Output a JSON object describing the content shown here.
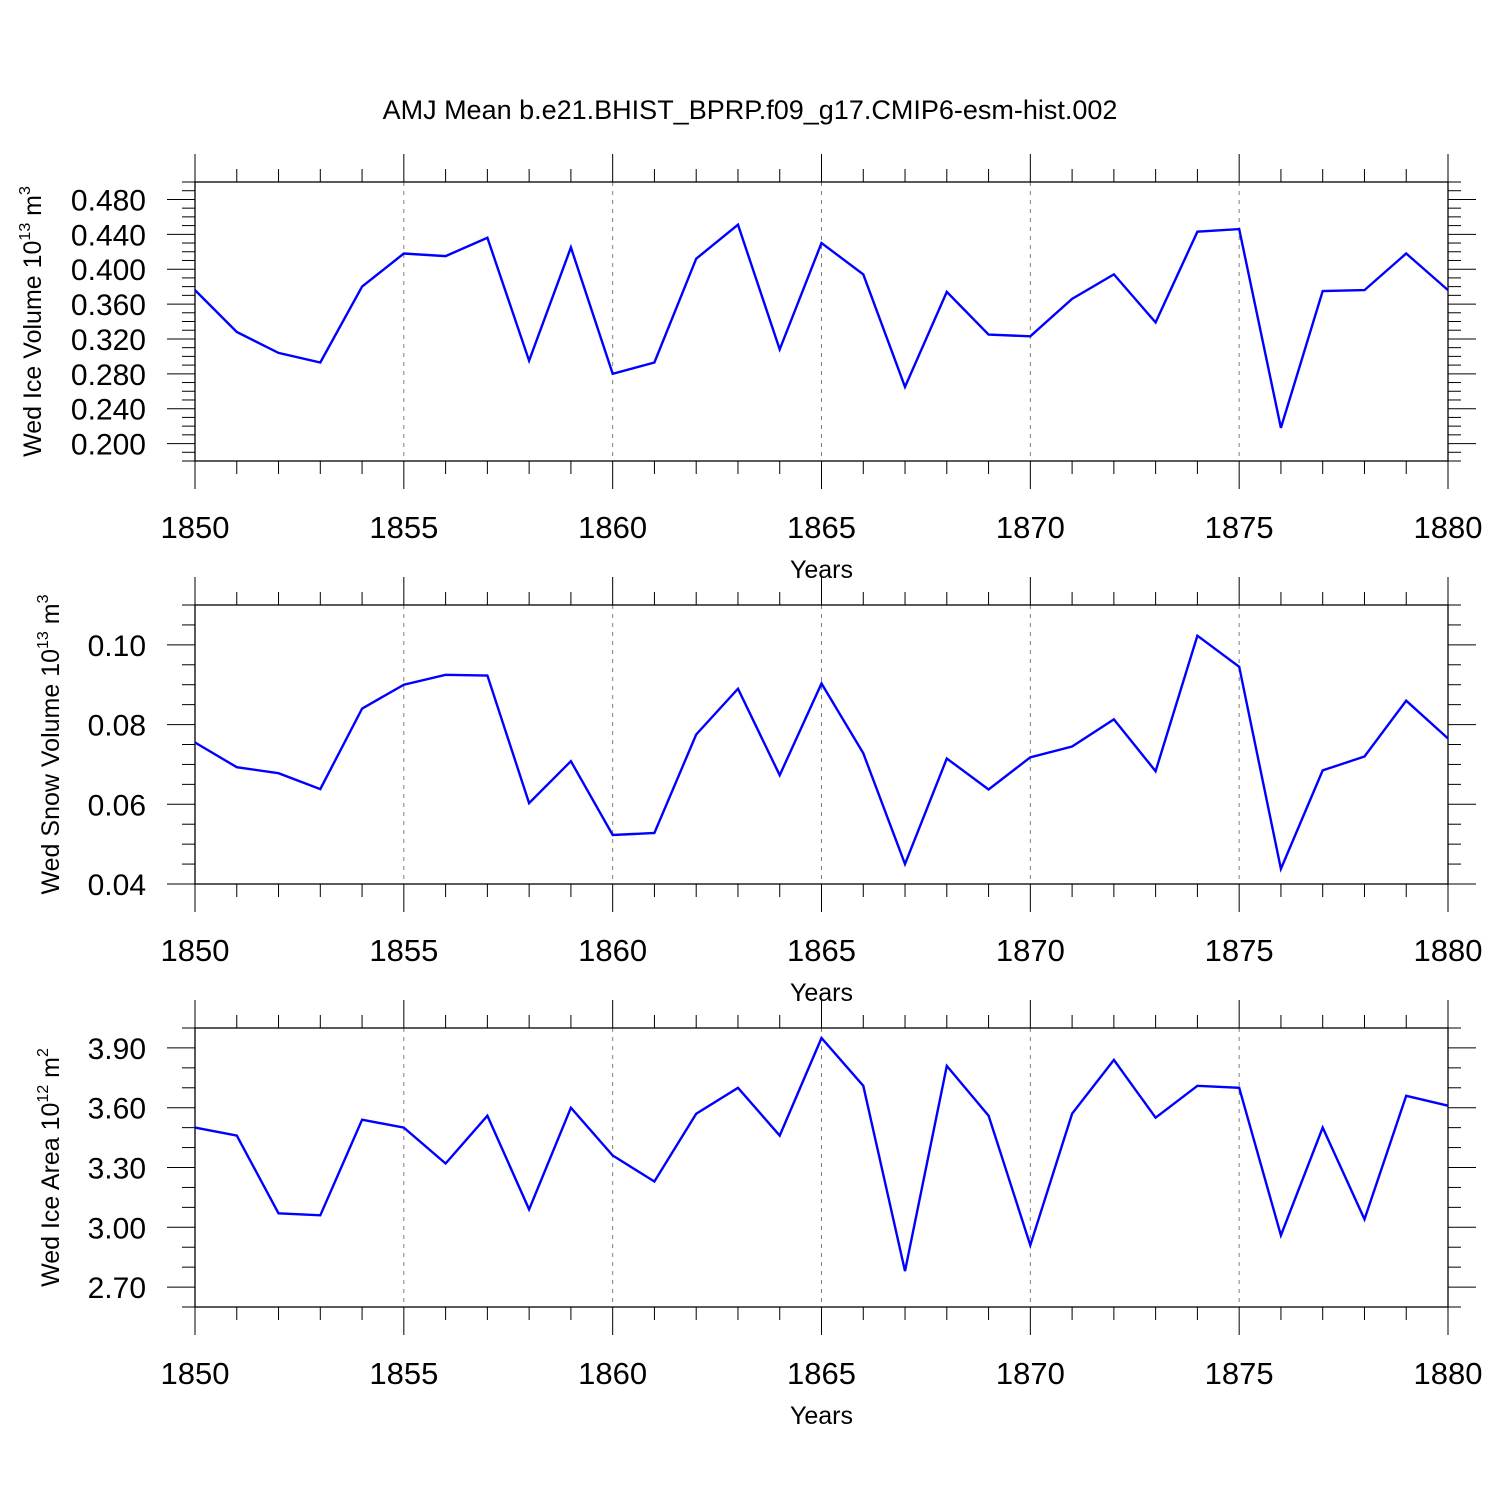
{
  "title": "AMJ Mean b.e21.BHIST_BPRP.f09_g17.CMIP6-esm-hist.002",
  "colors": {
    "line": "#0000ff",
    "axis": "#000000",
    "grid": "#808080",
    "background": "#ffffff"
  },
  "chart_data": [
    {
      "type": "line",
      "ylabel": "Wed Ice Volume",
      "ylabel_base": "10",
      "ylabel_exp": "13",
      "ylabel_unit": "m",
      "ylabel_unit_exp": "3",
      "xlabel": "Years",
      "xlim": [
        1850,
        1880
      ],
      "ylim": [
        0.18,
        0.5
      ],
      "yticks": [
        0.2,
        0.24,
        0.28,
        0.32,
        0.36,
        0.4,
        0.44,
        0.48
      ],
      "ytick_labels": [
        "0.200",
        "0.240",
        "0.280",
        "0.320",
        "0.360",
        "0.400",
        "0.440",
        "0.480"
      ],
      "yminor_step": 0.01,
      "xticks": [
        1850,
        1855,
        1860,
        1865,
        1870,
        1875,
        1880
      ],
      "xtick_labels": [
        "1850",
        "1855",
        "1860",
        "1865",
        "1870",
        "1875",
        "1880"
      ],
      "grid_x": [
        1855,
        1860,
        1865,
        1870,
        1875
      ],
      "x": [
        1850,
        1851,
        1852,
        1853,
        1854,
        1855,
        1856,
        1857,
        1858,
        1859,
        1860,
        1861,
        1862,
        1863,
        1864,
        1865,
        1866,
        1867,
        1868,
        1869,
        1870,
        1871,
        1872,
        1873,
        1874,
        1875,
        1876,
        1877,
        1878,
        1879,
        1880
      ],
      "values": [
        0.376,
        0.328,
        0.304,
        0.293,
        0.38,
        0.418,
        0.415,
        0.436,
        0.295,
        0.425,
        0.28,
        0.293,
        0.412,
        0.451,
        0.308,
        0.43,
        0.394,
        0.265,
        0.374,
        0.325,
        0.323,
        0.366,
        0.394,
        0.339,
        0.443,
        0.446,
        0.218,
        0.375,
        0.376,
        0.418,
        0.376
      ]
    },
    {
      "type": "line",
      "ylabel": "Wed Snow Volume",
      "ylabel_base": "10",
      "ylabel_exp": "13",
      "ylabel_unit": "m",
      "ylabel_unit_exp": "3",
      "xlabel": "Years",
      "xlim": [
        1850,
        1880
      ],
      "ylim": [
        0.04,
        0.11
      ],
      "yticks": [
        0.04,
        0.06,
        0.08,
        0.1
      ],
      "ytick_labels": [
        "0.04",
        "0.06",
        "0.08",
        "0.10"
      ],
      "yminor_step": 0.005,
      "xticks": [
        1850,
        1855,
        1860,
        1865,
        1870,
        1875,
        1880
      ],
      "xtick_labels": [
        "1850",
        "1855",
        "1860",
        "1865",
        "1870",
        "1875",
        "1880"
      ],
      "grid_x": [
        1855,
        1860,
        1865,
        1870,
        1875
      ],
      "x": [
        1850,
        1851,
        1852,
        1853,
        1854,
        1855,
        1856,
        1857,
        1858,
        1859,
        1860,
        1861,
        1862,
        1863,
        1864,
        1865,
        1866,
        1867,
        1868,
        1869,
        1870,
        1871,
        1872,
        1873,
        1874,
        1875,
        1876,
        1877,
        1878,
        1879,
        1880
      ],
      "values": [
        0.0755,
        0.0693,
        0.0678,
        0.0638,
        0.084,
        0.09,
        0.0925,
        0.0923,
        0.0603,
        0.0708,
        0.0523,
        0.0528,
        0.0775,
        0.089,
        0.0673,
        0.0903,
        0.0728,
        0.045,
        0.0715,
        0.0637,
        0.0718,
        0.0745,
        0.0813,
        0.0683,
        0.1023,
        0.0945,
        0.0438,
        0.0685,
        0.072,
        0.086,
        0.0765
      ]
    },
    {
      "type": "line",
      "ylabel": "Wed Ice Area",
      "ylabel_base": "10",
      "ylabel_exp": "12",
      "ylabel_unit": "m",
      "ylabel_unit_exp": "2",
      "xlabel": "Years",
      "xlim": [
        1850,
        1880
      ],
      "ylim": [
        2.6,
        4.0
      ],
      "yticks": [
        2.7,
        3.0,
        3.3,
        3.6,
        3.9
      ],
      "ytick_labels": [
        "2.70",
        "3.00",
        "3.30",
        "3.60",
        "3.90"
      ],
      "yminor_step": 0.1,
      "xticks": [
        1850,
        1855,
        1860,
        1865,
        1870,
        1875,
        1880
      ],
      "xtick_labels": [
        "1850",
        "1855",
        "1860",
        "1865",
        "1870",
        "1875",
        "1880"
      ],
      "grid_x": [
        1855,
        1860,
        1865,
        1870,
        1875
      ],
      "x": [
        1850,
        1851,
        1852,
        1853,
        1854,
        1855,
        1856,
        1857,
        1858,
        1859,
        1860,
        1861,
        1862,
        1863,
        1864,
        1865,
        1866,
        1867,
        1868,
        1869,
        1870,
        1871,
        1872,
        1873,
        1874,
        1875,
        1876,
        1877,
        1878,
        1879,
        1880
      ],
      "values": [
        3.5,
        3.46,
        3.07,
        3.06,
        3.54,
        3.5,
        3.32,
        3.56,
        3.09,
        3.6,
        3.36,
        3.23,
        3.57,
        3.7,
        3.46,
        3.95,
        3.71,
        2.78,
        3.81,
        3.56,
        2.91,
        3.57,
        3.84,
        3.55,
        3.71,
        3.7,
        2.96,
        3.5,
        3.04,
        3.66,
        3.61
      ]
    }
  ]
}
